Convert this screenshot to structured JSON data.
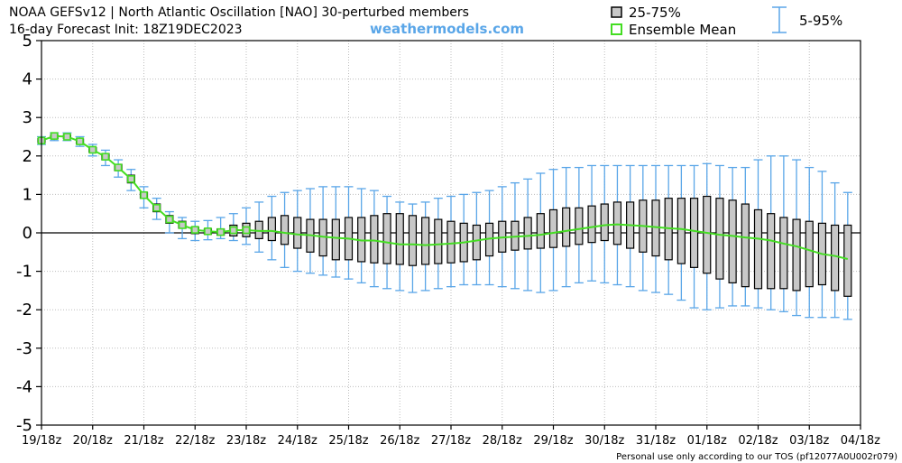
{
  "header": {
    "title_line1": "NOAA GEFSv12 | North Atlantic Oscillation [NAO]  30-perturbed members",
    "title_line2": "16-day Forecast Init: 18Z19DEC2023",
    "website": "weathermodels.com"
  },
  "legend": {
    "box_label": "25-75%",
    "mean_label": "Ensemble Mean",
    "whisker_label": "5-95%"
  },
  "footer_note": "Personal use only according to our TOS (pf12077A0U002r079)",
  "colors": {
    "box_fill": "#c8c8c8",
    "whisker": "#5aa6e8",
    "mean": "#44dd22",
    "zero_line": "#000000",
    "grid": "#bdbdbd"
  },
  "chart_data": {
    "type": "box",
    "xlabel": "",
    "ylabel": "",
    "ylim": [
      -5,
      5
    ],
    "yticks": [
      "5",
      "4",
      "3",
      "2",
      "1",
      "0",
      "-1",
      "-2",
      "-3",
      "-4",
      "-5"
    ],
    "xticks": [
      "19/18z",
      "20/18z",
      "21/18z",
      "22/18z",
      "23/18z",
      "24/18z",
      "25/18z",
      "26/18z",
      "27/18z",
      "28/18z",
      "29/18z",
      "30/18z",
      "31/18z",
      "01/18z",
      "02/18z",
      "03/18z",
      "04/18z"
    ],
    "grid": true,
    "step_hours": 6,
    "legend_placement": "top",
    "series": [
      {
        "name": "Ensemble Mean",
        "values": [
          2.4,
          2.52,
          2.5,
          2.38,
          2.16,
          1.98,
          1.7,
          1.4,
          0.98,
          0.65,
          0.35,
          0.2,
          0.08,
          0.04,
          0.02,
          0.07,
          0.07,
          0.05,
          0.05,
          0.0,
          -0.04,
          -0.06,
          -0.1,
          -0.13,
          -0.15,
          -0.2,
          -0.2,
          -0.25,
          -0.3,
          -0.3,
          -0.32,
          -0.3,
          -0.28,
          -0.25,
          -0.2,
          -0.15,
          -0.12,
          -0.1,
          -0.08,
          -0.05,
          0.0,
          0.05,
          0.1,
          0.15,
          0.2,
          0.22,
          0.2,
          0.18,
          0.15,
          0.12,
          0.1,
          0.05,
          0.0,
          -0.05,
          -0.08,
          -0.12,
          -0.15,
          -0.2,
          -0.28,
          -0.35,
          -0.45,
          -0.55,
          -0.6,
          -0.68
        ]
      },
      {
        "name": "25-75%",
        "low": [
          2.35,
          2.45,
          2.45,
          2.32,
          2.1,
          1.9,
          1.62,
          1.3,
          0.9,
          0.55,
          0.25,
          0.12,
          -0.02,
          -0.03,
          -0.06,
          -0.08,
          -0.1,
          -0.15,
          -0.2,
          -0.3,
          -0.4,
          -0.5,
          -0.6,
          -0.7,
          -0.7,
          -0.75,
          -0.78,
          -0.8,
          -0.82,
          -0.85,
          -0.82,
          -0.8,
          -0.78,
          -0.75,
          -0.7,
          -0.6,
          -0.5,
          -0.45,
          -0.42,
          -0.4,
          -0.38,
          -0.35,
          -0.3,
          -0.25,
          -0.2,
          -0.3,
          -0.4,
          -0.5,
          -0.6,
          -0.7,
          -0.8,
          -0.9,
          -1.05,
          -1.2,
          -1.3,
          -1.4,
          -1.45,
          -1.45,
          -1.45,
          -1.5,
          -1.4,
          -1.35,
          -1.5,
          -1.65
        ],
        "high": [
          2.45,
          2.55,
          2.55,
          2.44,
          2.22,
          2.06,
          1.78,
          1.5,
          1.05,
          0.75,
          0.45,
          0.3,
          0.15,
          0.1,
          0.1,
          0.2,
          0.25,
          0.3,
          0.4,
          0.45,
          0.4,
          0.35,
          0.35,
          0.35,
          0.4,
          0.4,
          0.45,
          0.5,
          0.5,
          0.45,
          0.4,
          0.35,
          0.3,
          0.25,
          0.2,
          0.25,
          0.3,
          0.3,
          0.4,
          0.5,
          0.6,
          0.65,
          0.65,
          0.7,
          0.75,
          0.8,
          0.8,
          0.85,
          0.85,
          0.9,
          0.9,
          0.9,
          0.95,
          0.9,
          0.85,
          0.75,
          0.6,
          0.5,
          0.4,
          0.35,
          0.3,
          0.25,
          0.2,
          0.2
        ]
      },
      {
        "name": "5-95%",
        "low": [
          2.3,
          2.4,
          2.4,
          2.25,
          2.0,
          1.75,
          1.45,
          1.1,
          0.65,
          0.35,
          0.0,
          -0.15,
          -0.2,
          -0.18,
          -0.15,
          -0.2,
          -0.3,
          -0.5,
          -0.7,
          -0.9,
          -1.0,
          -1.05,
          -1.1,
          -1.15,
          -1.2,
          -1.3,
          -1.4,
          -1.45,
          -1.5,
          -1.55,
          -1.5,
          -1.45,
          -1.4,
          -1.35,
          -1.35,
          -1.35,
          -1.4,
          -1.45,
          -1.5,
          -1.55,
          -1.5,
          -1.4,
          -1.3,
          -1.25,
          -1.3,
          -1.35,
          -1.4,
          -1.5,
          -1.55,
          -1.6,
          -1.75,
          -1.95,
          -2.0,
          -1.95,
          -1.9,
          -1.9,
          -1.95,
          -2.0,
          -2.05,
          -2.15,
          -2.2,
          -2.2,
          -2.2,
          -2.25
        ],
        "high": [
          2.5,
          2.6,
          2.6,
          2.5,
          2.3,
          2.15,
          1.9,
          1.65,
          1.2,
          0.9,
          0.55,
          0.4,
          0.3,
          0.32,
          0.4,
          0.5,
          0.65,
          0.8,
          0.95,
          1.05,
          1.1,
          1.15,
          1.2,
          1.2,
          1.2,
          1.15,
          1.1,
          0.95,
          0.8,
          0.75,
          0.8,
          0.9,
          0.95,
          1.0,
          1.05,
          1.1,
          1.2,
          1.3,
          1.4,
          1.55,
          1.65,
          1.7,
          1.7,
          1.75,
          1.75,
          1.75,
          1.75,
          1.75,
          1.75,
          1.75,
          1.75,
          1.75,
          1.8,
          1.75,
          1.7,
          1.7,
          1.9,
          2.0,
          2.0,
          1.9,
          1.7,
          1.6,
          1.3,
          1.05
        ]
      }
    ]
  }
}
